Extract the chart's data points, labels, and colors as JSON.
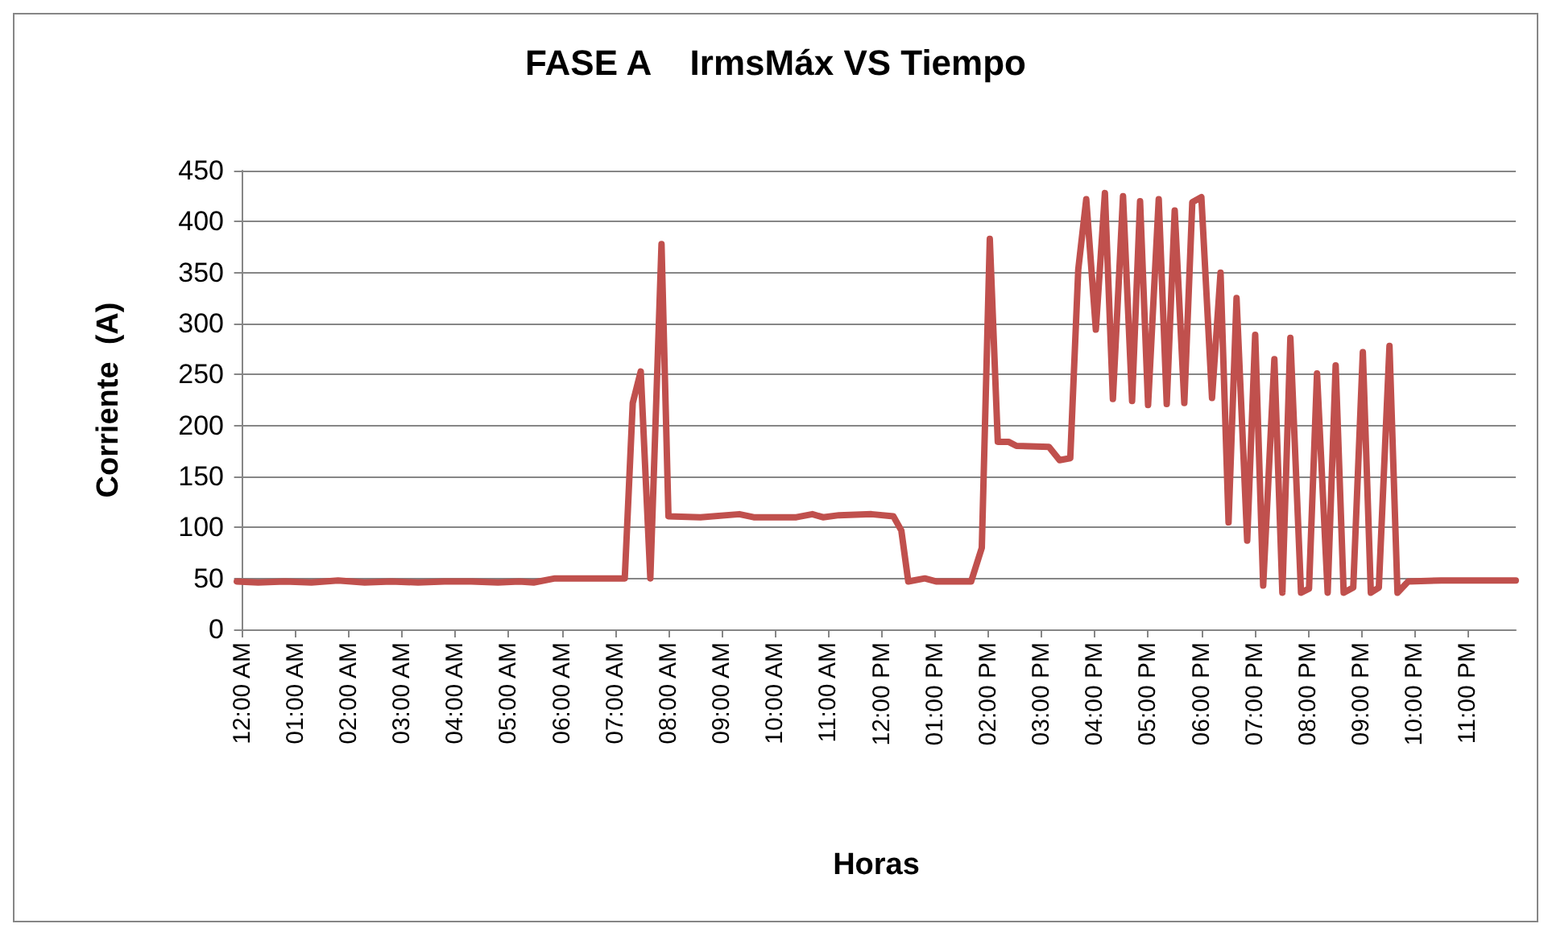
{
  "chart_data": {
    "type": "line",
    "title": "FASE A    IrmsMáx VS Tiempo",
    "xlabel": "Horas",
    "ylabel": "Corriente  (A)",
    "x": [
      -0.1,
      0.3,
      0.8,
      1.3,
      1.8,
      2.3,
      2.8,
      3.3,
      3.8,
      4.3,
      4.8,
      5.2,
      5.47,
      5.87,
      6.5,
      7.18,
      7.33,
      7.48,
      7.66,
      7.87,
      8.0,
      8.6,
      9.33,
      9.6,
      10.4,
      10.7,
      10.9,
      11.2,
      11.81,
      12.22,
      12.37,
      12.5,
      12.81,
      13.02,
      13.68,
      13.88,
      14.03,
      14.18,
      14.38,
      14.53,
      15.14,
      15.34,
      15.54,
      15.69,
      15.84,
      16.02,
      16.19,
      16.34,
      16.53,
      16.7,
      16.85,
      17.0,
      17.2,
      17.35,
      17.5,
      17.68,
      17.83,
      18.0,
      18.2,
      18.36,
      18.51,
      18.66,
      18.86,
      19.01,
      19.16,
      19.37,
      19.52,
      19.67,
      19.87,
      20.02,
      20.17,
      20.37,
      20.52,
      20.67,
      20.85,
      21.03,
      21.18,
      21.33,
      21.53,
      21.68,
      21.88,
      22.5,
      23.2,
      23.9
    ],
    "series": [
      {
        "color": "#c0504d",
        "values": [
          47,
          46,
          47,
          46,
          48,
          46,
          47,
          46,
          47,
          47,
          46,
          47,
          46,
          50,
          50,
          50,
          222,
          253,
          50,
          378,
          111,
          110,
          113,
          110,
          110,
          113,
          110,
          112,
          113,
          111,
          97,
          47,
          50,
          47,
          47,
          80,
          383,
          184,
          184,
          180,
          179,
          166,
          168,
          353,
          422,
          294,
          428,
          226,
          425,
          224,
          420,
          220,
          422,
          221,
          411,
          222,
          419,
          424,
          227,
          350,
          105,
          325,
          87,
          289,
          43,
          265,
          36,
          286,
          36,
          40,
          251,
          36,
          259,
          36,
          41,
          272,
          36,
          41,
          278,
          36,
          47,
          48,
          48,
          48
        ]
      }
    ],
    "xlim": [
      -0.1,
      23.9
    ],
    "xticks": [
      {
        "value": 0,
        "label": "12:00 AM"
      },
      {
        "value": 1,
        "label": "01:00 AM"
      },
      {
        "value": 2,
        "label": "02:00 AM"
      },
      {
        "value": 3,
        "label": "03:00 AM"
      },
      {
        "value": 4,
        "label": "04:00 AM"
      },
      {
        "value": 5,
        "label": "05:00 AM"
      },
      {
        "value": 6,
        "label": "06:00 AM"
      },
      {
        "value": 7,
        "label": "07:00 AM"
      },
      {
        "value": 8,
        "label": "08:00 AM"
      },
      {
        "value": 9,
        "label": "09:00 AM"
      },
      {
        "value": 10,
        "label": "10:00 AM"
      },
      {
        "value": 11,
        "label": "11:00 AM"
      },
      {
        "value": 12,
        "label": "12:00 PM"
      },
      {
        "value": 13,
        "label": "01:00 PM"
      },
      {
        "value": 14,
        "label": "02:00 PM"
      },
      {
        "value": 15,
        "label": "03:00 PM"
      },
      {
        "value": 16,
        "label": "04:00 PM"
      },
      {
        "value": 17,
        "label": "05:00 PM"
      },
      {
        "value": 18,
        "label": "06:00 PM"
      },
      {
        "value": 19,
        "label": "07:00 PM"
      },
      {
        "value": 20,
        "label": "08:00 PM"
      },
      {
        "value": 21,
        "label": "09:00 PM"
      },
      {
        "value": 22,
        "label": "10:00 PM"
      },
      {
        "value": 23,
        "label": "11:00 PM"
      }
    ],
    "ylim": [
      0,
      450
    ],
    "yticks": [
      0,
      50,
      100,
      150,
      200,
      250,
      300,
      350,
      400,
      450
    ],
    "grid": "y",
    "marker": "none",
    "line_style": "solid"
  }
}
